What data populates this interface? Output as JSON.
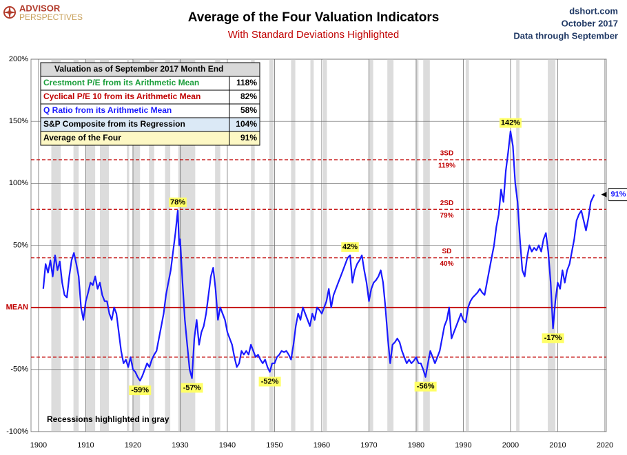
{
  "header": {
    "logo_top": "ADVISOR",
    "logo_bottom": "PERSPECTIVES",
    "site": "dshort.com",
    "date": "October 2017",
    "data_through": "Data through September"
  },
  "chart_data": {
    "type": "line",
    "title": "Average of the Four Valuation Indicators",
    "subtitle": "With Standard Deviations Highlighted",
    "note": "Recessions highlighted in gray",
    "color": "#1a1aff",
    "xlim": [
      1898.4,
      2020.3
    ],
    "xticks": [
      1900,
      1910,
      1920,
      1930,
      1940,
      1950,
      1960,
      1970,
      1980,
      1990,
      2000,
      2010,
      2020
    ],
    "ylim": [
      -100,
      200
    ],
    "yticks": [
      {
        "value": -100,
        "label": "-100%"
      },
      {
        "value": -50,
        "label": "-50%"
      },
      {
        "value": 0,
        "label": "MEAN"
      },
      {
        "value": 50,
        "label": "50%"
      },
      {
        "value": 100,
        "label": "100%"
      },
      {
        "value": 150,
        "label": "150%"
      },
      {
        "value": 200,
        "label": "200%"
      }
    ],
    "grid": true,
    "x": [
      1901,
      1901.5,
      1902,
      1902.5,
      1903,
      1903.5,
      1904,
      1904.5,
      1905,
      1905.5,
      1906,
      1906.5,
      1907,
      1907.5,
      1908,
      1908.5,
      1909,
      1909.5,
      1910,
      1910.5,
      1911,
      1911.5,
      1912,
      1912.5,
      1913,
      1913.5,
      1914,
      1914.5,
      1915,
      1915.5,
      1916,
      1916.5,
      1917,
      1917.5,
      1918,
      1918.5,
      1919,
      1919.5,
      1920,
      1920.5,
      1921,
      1921.5,
      1922,
      1922.5,
      1923,
      1923.5,
      1924,
      1924.5,
      1925,
      1925.5,
      1926,
      1926.5,
      1927,
      1927.5,
      1928,
      1928.5,
      1929,
      1929.5,
      1929.8,
      1930,
      1930.5,
      1931,
      1931.5,
      1932,
      1932.5,
      1933,
      1933.5,
      1934,
      1934.5,
      1935,
      1935.5,
      1936,
      1936.5,
      1937,
      1937.5,
      1938,
      1938.5,
      1939,
      1939.5,
      1940,
      1940.5,
      1941,
      1941.5,
      1942,
      1942.5,
      1943,
      1943.5,
      1944,
      1944.5,
      1945,
      1945.5,
      1946,
      1946.5,
      1947,
      1947.5,
      1948,
      1948.5,
      1949,
      1949.5,
      1950,
      1950.5,
      1951,
      1951.5,
      1952,
      1952.5,
      1953,
      1953.5,
      1954,
      1954.5,
      1955,
      1955.5,
      1956,
      1956.5,
      1957,
      1957.5,
      1958,
      1958.5,
      1959,
      1959.5,
      1960,
      1960.5,
      1961,
      1961.5,
      1962,
      1962.5,
      1963,
      1963.5,
      1964,
      1964.5,
      1965,
      1965.5,
      1966,
      1966.5,
      1967,
      1967.5,
      1968,
      1968.5,
      1969,
      1969.5,
      1970,
      1970.5,
      1971,
      1971.5,
      1972,
      1972.5,
      1973,
      1973.5,
      1974,
      1974.5,
      1975,
      1975.5,
      1976,
      1976.5,
      1977,
      1977.5,
      1978,
      1978.5,
      1979,
      1979.5,
      1980,
      1980.5,
      1981,
      1981.5,
      1982,
      1982.5,
      1983,
      1983.5,
      1984,
      1984.5,
      1985,
      1985.5,
      1986,
      1986.5,
      1987,
      1987.5,
      1988,
      1988.5,
      1989,
      1989.5,
      1990,
      1990.5,
      1991,
      1991.5,
      1992,
      1992.5,
      1993,
      1993.5,
      1994,
      1994.5,
      1995,
      1995.5,
      1996,
      1996.5,
      1997,
      1997.5,
      1998,
      1998.5,
      1999,
      1999.5,
      2000,
      2000.5,
      2001,
      2001.5,
      2002,
      2002.5,
      2003,
      2003.5,
      2004,
      2004.5,
      2005,
      2005.5,
      2006,
      2006.5,
      2007,
      2007.5,
      2008,
      2008.5,
      2009,
      2009.5,
      2010,
      2010.5,
      2011,
      2011.5,
      2012,
      2012.5,
      2013,
      2013.5,
      2014,
      2014.5,
      2015,
      2015.5,
      2016,
      2016.5,
      2017,
      2017.75
    ],
    "values": [
      15,
      35,
      28,
      38,
      25,
      42,
      30,
      37,
      20,
      10,
      8,
      25,
      38,
      44,
      35,
      25,
      0,
      -10,
      5,
      12,
      20,
      18,
      25,
      15,
      20,
      10,
      5,
      5,
      -5,
      -10,
      0,
      -5,
      -20,
      -35,
      -45,
      -42,
      -48,
      -40,
      -50,
      -52,
      -56,
      -59,
      -55,
      -50,
      -45,
      -48,
      -42,
      -38,
      -35,
      -25,
      -15,
      -5,
      10,
      20,
      30,
      45,
      60,
      78,
      50,
      55,
      20,
      -10,
      -30,
      -50,
      -57,
      -25,
      -10,
      -30,
      -20,
      -15,
      -5,
      10,
      25,
      32,
      15,
      -10,
      0,
      -5,
      -10,
      -20,
      -25,
      -30,
      -40,
      -48,
      -45,
      -35,
      -38,
      -35,
      -38,
      -30,
      -35,
      -40,
      -38,
      -42,
      -45,
      -42,
      -48,
      -52,
      -45,
      -45,
      -40,
      -38,
      -35,
      -36,
      -35,
      -38,
      -42,
      -30,
      -15,
      -5,
      -10,
      0,
      -5,
      -10,
      -15,
      -5,
      -10,
      0,
      -2,
      -5,
      0,
      5,
      15,
      0,
      10,
      15,
      20,
      25,
      30,
      35,
      40,
      42,
      20,
      30,
      35,
      38,
      42,
      30,
      20,
      5,
      15,
      20,
      22,
      25,
      30,
      20,
      0,
      -25,
      -45,
      -30,
      -28,
      -25,
      -28,
      -35,
      -40,
      -45,
      -42,
      -45,
      -43,
      -40,
      -45,
      -45,
      -50,
      -56,
      -45,
      -35,
      -40,
      -45,
      -40,
      -35,
      -25,
      -15,
      -10,
      0,
      -25,
      -20,
      -15,
      -10,
      -5,
      -10,
      -12,
      0,
      5,
      8,
      10,
      12,
      15,
      12,
      10,
      20,
      30,
      40,
      50,
      65,
      75,
      95,
      85,
      110,
      125,
      142,
      130,
      100,
      85,
      55,
      30,
      25,
      40,
      50,
      45,
      48,
      46,
      50,
      45,
      55,
      60,
      45,
      20,
      -17,
      5,
      20,
      15,
      30,
      20,
      30,
      35,
      45,
      55,
      70,
      75,
      78,
      70,
      62,
      72,
      85,
      91
    ],
    "recessions": [
      [
        1902.7,
        1904.7
      ],
      [
        1907.4,
        1908.5
      ],
      [
        1910,
        1912
      ],
      [
        1913,
        1914.9
      ],
      [
        1918.7,
        1919.2
      ],
      [
        1920,
        1921.5
      ],
      [
        1923.4,
        1924.5
      ],
      [
        1926.8,
        1927.9
      ],
      [
        1929.6,
        1933.2
      ],
      [
        1937.4,
        1938.5
      ],
      [
        1945,
        1945.8
      ],
      [
        1948.9,
        1949.8
      ],
      [
        1953.5,
        1954.4
      ],
      [
        1957.6,
        1958.3
      ],
      [
        1960.3,
        1961.1
      ],
      [
        1969.9,
        1970.9
      ],
      [
        1973.9,
        1975.2
      ],
      [
        1980,
        1980.5
      ],
      [
        1981.5,
        1982.9
      ],
      [
        1990.5,
        1991.2
      ],
      [
        2001.2,
        2001.9
      ],
      [
        2007.9,
        2009.5
      ]
    ],
    "reference_lines": [
      {
        "value": 119,
        "name": "3SD",
        "label": "119%"
      },
      {
        "value": 79,
        "name": "2SD",
        "label": "79%"
      },
      {
        "value": 40,
        "name": "SD",
        "label": "40%"
      },
      {
        "value": -40
      }
    ],
    "annotations": [
      {
        "x": 1929.5,
        "value": 78,
        "label": "78%"
      },
      {
        "x": 1921.5,
        "value": -59,
        "label": "-59%"
      },
      {
        "x": 1932.5,
        "value": -57,
        "label": "-57%"
      },
      {
        "x": 1949,
        "value": -52,
        "label": "-52%"
      },
      {
        "x": 1966,
        "value": 42,
        "label": "42%"
      },
      {
        "x": 1982,
        "value": -56,
        "label": "-56%"
      },
      {
        "x": 2000,
        "value": 142,
        "label": "142%"
      },
      {
        "x": 2009,
        "value": -17,
        "label": "-17%"
      }
    ],
    "end_label": {
      "value": 91,
      "label": "91%"
    },
    "table": {
      "title": "Valuation as of September 2017 Month End",
      "rows": [
        {
          "label": "Crestmont P/E from its Arithmetic Mean",
          "value": 118,
          "value_label": "118%",
          "color": "#1a9e3a",
          "background": "#ffffff"
        },
        {
          "label": "Cyclical P/E 10 from its Arithmetic Mean",
          "value": 82,
          "value_label": "82%",
          "color": "#c00000",
          "background": "#ffffff"
        },
        {
          "label": "Q Ratio from its Arithmetic Mean",
          "value": 58,
          "value_label": "58%",
          "color": "#1a1aff",
          "background": "#ffffff"
        },
        {
          "label": "S&P Composite from its Regression",
          "value": 104,
          "value_label": "104%",
          "color": "#000000",
          "background": "#dbe9f6"
        },
        {
          "label": "Average of the Four",
          "value": 91,
          "value_label": "91%",
          "color": "#000000",
          "background": "#fdf8c4"
        }
      ]
    }
  }
}
